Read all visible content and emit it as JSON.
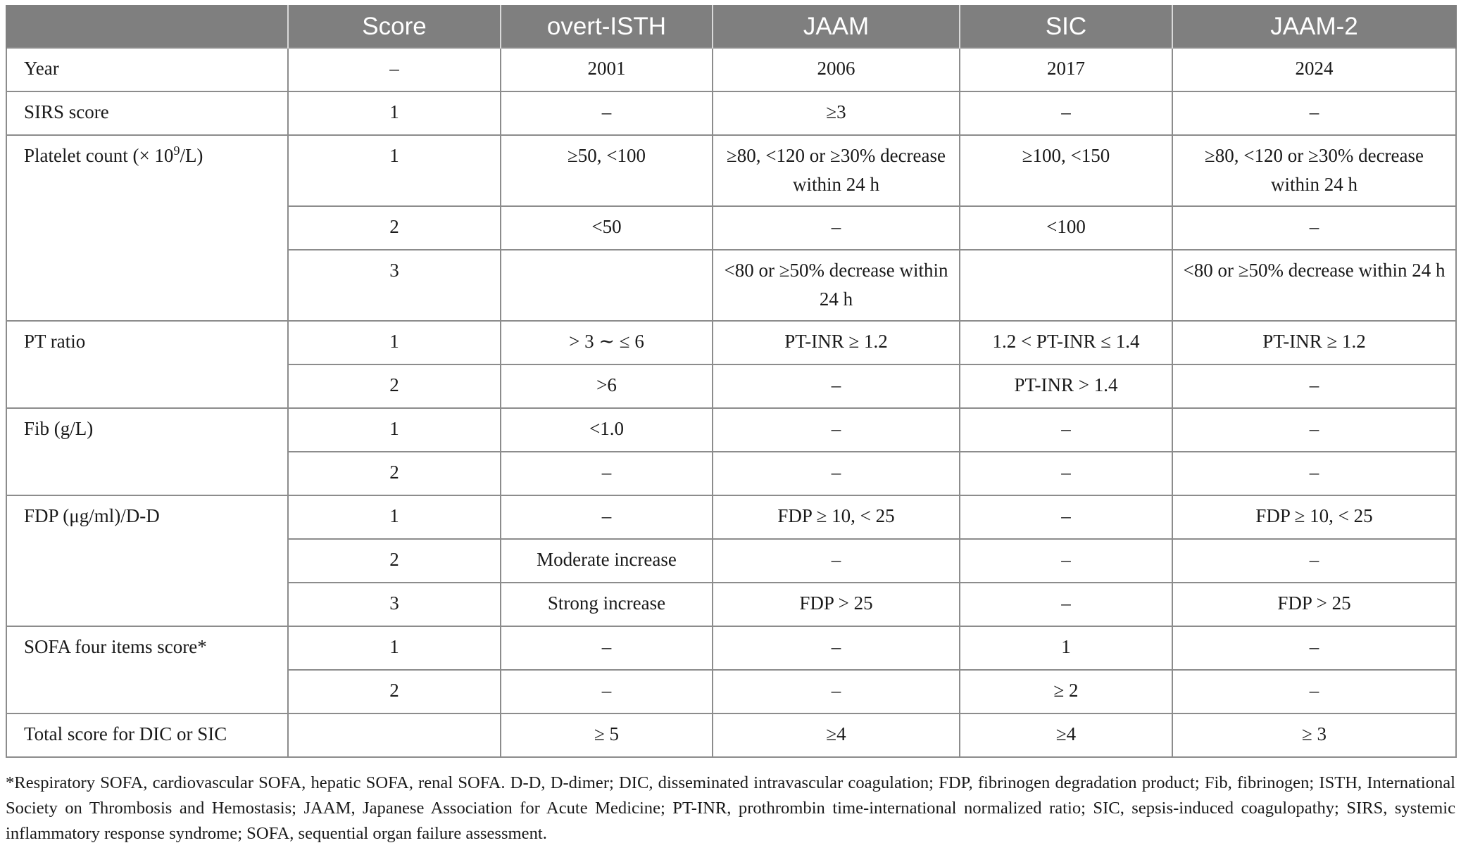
{
  "header": [
    "",
    "Score",
    "overt-ISTH",
    "JAAM",
    "SIC",
    "JAAM-2"
  ],
  "rows": {
    "year": {
      "label": "Year",
      "score": "–",
      "isth": "2001",
      "jaam": "2006",
      "sic": "2017",
      "jaam2": "2024"
    },
    "sirs": {
      "label": "SIRS score",
      "score": "1",
      "isth": "–",
      "jaam": "≥3",
      "sic": "–",
      "jaam2": "–"
    },
    "platelet": {
      "label_prefix": "Platelet count (× 10",
      "label_sup": "9",
      "label_suffix": "/L)",
      "s1": {
        "score": "1",
        "isth": "≥50, <100",
        "jaam": "≥80, <120 or ≥30% decrease within 24 h",
        "sic": "≥100, <150",
        "jaam2": "≥80, <120 or ≥30% decrease within 24 h"
      },
      "s2": {
        "score": "2",
        "isth": "<50",
        "jaam": "–",
        "sic": "<100",
        "jaam2": "–"
      },
      "s3": {
        "score": "3",
        "isth": "",
        "jaam": "<80 or ≥50% decrease within 24 h",
        "sic": "",
        "jaam2": "<80 or ≥50% decrease within 24 h"
      }
    },
    "pt": {
      "label": "PT ratio",
      "s1": {
        "score": "1",
        "isth": "> 3 ∼ ≤ 6",
        "jaam": "PT-INR ≥ 1.2",
        "sic": "1.2 < PT-INR ≤ 1.4",
        "jaam2": "PT-INR ≥ 1.2"
      },
      "s2": {
        "score": "2",
        "isth": ">6",
        "jaam": "–",
        "sic": "PT-INR > 1.4",
        "jaam2": "–"
      }
    },
    "fib": {
      "label": "Fib (g/L)",
      "s1": {
        "score": "1",
        "isth": "<1.0",
        "jaam": "–",
        "sic": "–",
        "jaam2": "–"
      },
      "s2": {
        "score": "2",
        "isth": "–",
        "jaam": "–",
        "sic": "–",
        "jaam2": "–"
      }
    },
    "fdp": {
      "label": "FDP (μg/ml)/D-D",
      "s1": {
        "score": "1",
        "isth": "–",
        "jaam": "FDP ≥ 10, < 25",
        "sic": "–",
        "jaam2": "FDP ≥ 10, < 25"
      },
      "s2": {
        "score": "2",
        "isth": "Moderate increase",
        "jaam": "–",
        "sic": "–",
        "jaam2": "–"
      },
      "s3": {
        "score": "3",
        "isth": "Strong increase",
        "jaam": "FDP > 25",
        "sic": "–",
        "jaam2": "FDP > 25"
      }
    },
    "sofa": {
      "label": "SOFA four items score*",
      "s1": {
        "score": "1",
        "isth": "–",
        "jaam": "–",
        "sic": "1",
        "jaam2": "–"
      },
      "s2": {
        "score": "2",
        "isth": "–",
        "jaam": "–",
        "sic": "≥ 2",
        "jaam2": "–"
      }
    },
    "total": {
      "label": "Total score for DIC or SIC",
      "score": "",
      "isth": "≥ 5",
      "jaam": "≥4",
      "sic": "≥4",
      "jaam2": "≥ 3"
    }
  },
  "footnote": "*Respiratory SOFA, cardiovascular SOFA, hepatic SOFA, renal SOFA. D-D, D-dimer; DIC, disseminated intravascular coagulation; FDP, fibrinogen degradation product; Fib, fibrinogen; ISTH, International Society on Thrombosis and Hemostasis; JAAM, Japanese Association for Acute Medicine; PT-INR, prothrombin time-international normalized ratio; SIC, sepsis-induced coagulopathy; SIRS, systemic inflammatory response syndrome; SOFA, sequential organ failure assessment."
}
